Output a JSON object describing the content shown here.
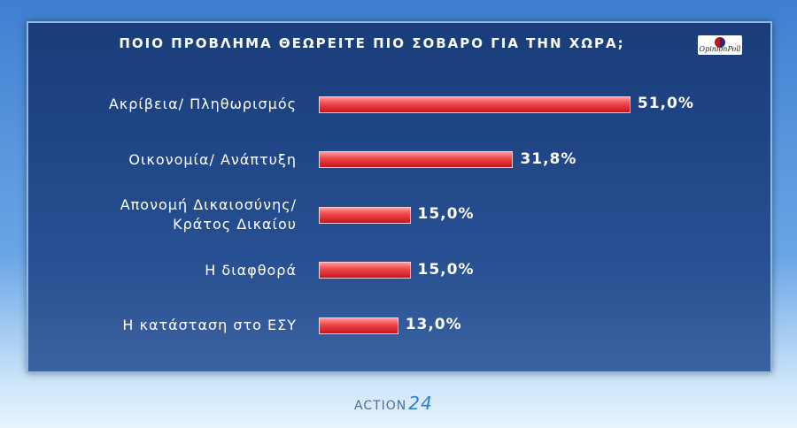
{
  "chart_data": {
    "type": "bar",
    "orientation": "horizontal",
    "title": "ΠΟΙΟ ΠΡΟΒΛΗΜΑ ΘΕΩΡΕΙΤΕ ΠΙΟ ΣΟΒΑΡΟ ΓΙΑ ΤΗΝ ΧΩΡΑ;",
    "categories": [
      "Ακρίβεια/ Πληθωρισμός",
      "Οικονομία/ Ανάπτυξη",
      "Απονομή Δικαιοσύνης/\nΚράτος Δικαίου",
      "Η διαφθορά",
      "Η κατάσταση στο ΕΣΥ"
    ],
    "values": [
      51.0,
      31.8,
      15.0,
      15.0,
      13.0
    ],
    "value_labels": [
      "51,0%",
      "31,8%",
      "15,0%",
      "15,0%",
      "13,0%"
    ],
    "color": "#e8343a"
  },
  "logos": {
    "poll": "OpinionPoll",
    "channel": "ACTION",
    "channel_number": "24"
  }
}
